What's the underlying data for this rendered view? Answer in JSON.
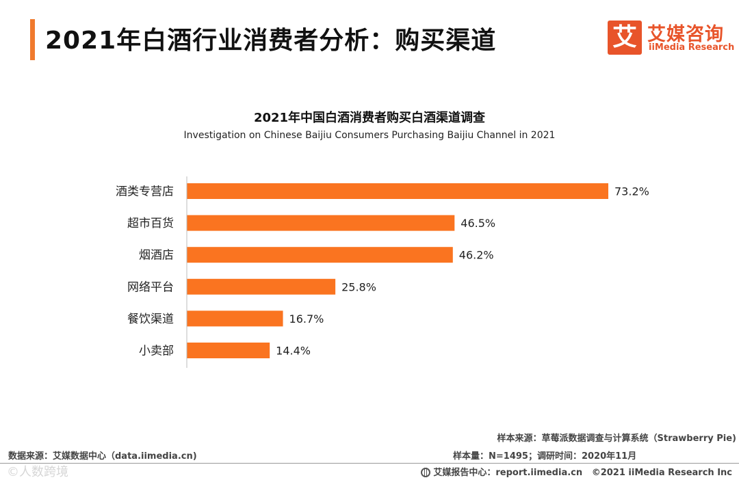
{
  "header": {
    "title": "2021年白酒行业消费者分析：购买渠道"
  },
  "logo": {
    "mark": "艾",
    "name_cn": "艾媒咨询",
    "name_en": "iiMedia Research"
  },
  "colors": {
    "accent": "#f07a2e",
    "bar": "#fa7420",
    "logo": "#e8542a"
  },
  "chart_data": {
    "type": "bar",
    "orientation": "horizontal",
    "title": "2021年中国白酒消费者购买白酒渠道调查",
    "subtitle": "Investigation on Chinese Baijiu Consumers Purchasing Baijiu Channel in 2021",
    "categories": [
      "酒类专营店",
      "超市百货",
      "烟酒店",
      "网络平台",
      "餐饮渠道",
      "小卖部"
    ],
    "values": [
      73.2,
      46.5,
      46.2,
      25.8,
      16.7,
      14.4
    ],
    "labels": [
      "73.2%",
      "46.5%",
      "46.2%",
      "25.8%",
      "16.7%",
      "14.4%"
    ],
    "unit": "%",
    "xlim": [
      0,
      73.2
    ]
  },
  "footer": {
    "data_source": "数据来源：艾媒数据中心（data.iimedia.cn)",
    "sample_source": "样本来源：草莓派数据调查与计算系统（Strawberry  Pie)",
    "sample_size": "样本量：N=1495；调研时间：2020年11月",
    "report_center": "艾媒报告中心：report.iimedia.cn",
    "copyright": "©2021  iiMedia Research  Inc",
    "watermark": "©人数跨境"
  }
}
